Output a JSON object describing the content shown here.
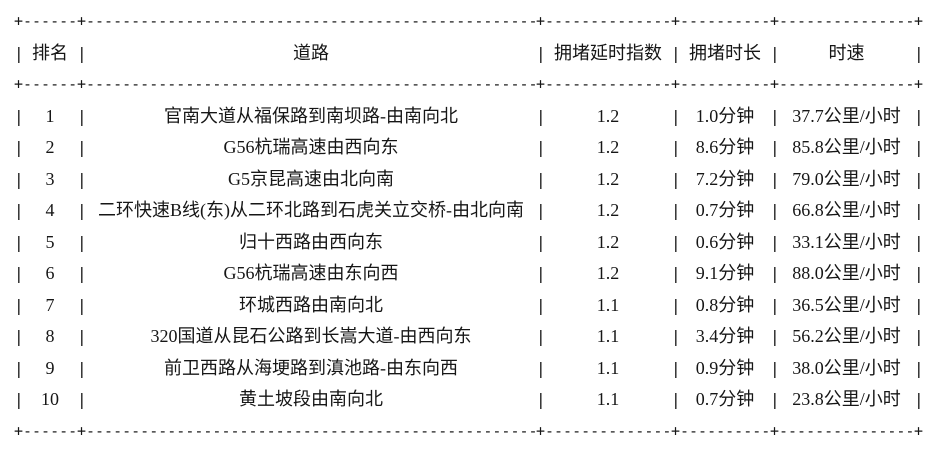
{
  "style": {
    "background": "#ffffff",
    "text_color": "#161616"
  },
  "glyphs": {
    "pipe": "|",
    "plus": "+",
    "dash_run": "------------------------------------------------------------"
  },
  "chart_data": {
    "type": "table",
    "title": "",
    "columns": [
      "排名",
      "道路",
      "拥堵延时指数",
      "拥堵时长",
      "时速"
    ],
    "rows": [
      [
        "1",
        "官南大道从福保路到南坝路-由南向北",
        "1.2",
        "1.0分钟",
        "37.7公里/小时"
      ],
      [
        "2",
        "G56杭瑞高速由西向东",
        "1.2",
        "8.6分钟",
        "85.8公里/小时"
      ],
      [
        "3",
        "G5京昆高速由北向南",
        "1.2",
        "7.2分钟",
        "79.0公里/小时"
      ],
      [
        "4",
        "二环快速B线(东)从二环北路到石虎关立交桥-由北向南",
        "1.2",
        "0.7分钟",
        "66.8公里/小时"
      ],
      [
        "5",
        "归十西路由西向东",
        "1.2",
        "0.6分钟",
        "33.1公里/小时"
      ],
      [
        "6",
        "G56杭瑞高速由东向西",
        "1.2",
        "9.1分钟",
        "88.0公里/小时"
      ],
      [
        "7",
        "环城西路由南向北",
        "1.1",
        "0.8分钟",
        "36.5公里/小时"
      ],
      [
        "8",
        "320国道从昆石公路到长嵩大道-由西向东",
        "1.1",
        "3.4分钟",
        "56.2公里/小时"
      ],
      [
        "9",
        "前卫西路从海埂路到滇池路-由东向西",
        "1.1",
        "0.9分钟",
        "38.0公里/小时"
      ],
      [
        "10",
        "黄土坡段由南向北",
        "1.1",
        "0.7分钟",
        "23.8公里/小时"
      ]
    ]
  }
}
